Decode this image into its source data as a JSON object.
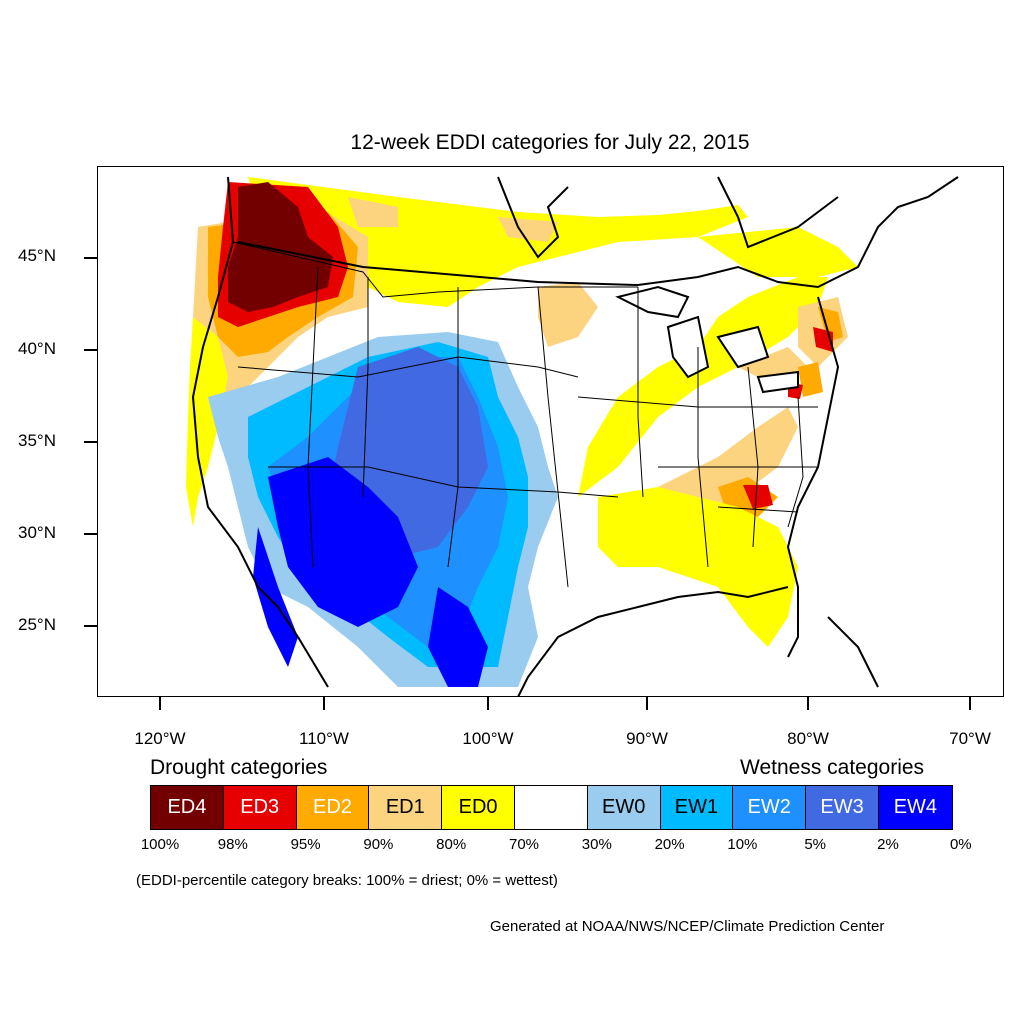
{
  "title": "12-week EDDI categories for July 22, 2015",
  "map": {
    "lat_labels": [
      "45°N",
      "40°N",
      "35°N",
      "30°N",
      "25°N"
    ],
    "lon_labels": [
      "120°W",
      "110°W",
      "100°W",
      "90°W",
      "80°W",
      "70°W"
    ],
    "colors": {
      "ED4": "#730000",
      "ED3": "#e60000",
      "ED2": "#ffaa00",
      "ED1": "#fcd37f",
      "ED0": "#ffff00",
      "none": "#ffffff",
      "EW0": "#99ccee",
      "EW1": "#00bbff",
      "EW2": "#1e90ff",
      "EW3": "#4169e1",
      "EW4": "#0000ff"
    }
  },
  "legend": {
    "drought_heading": "Drought categories",
    "wetness_heading": "Wetness categories",
    "categories": [
      {
        "label": "ED4",
        "color": "#730000",
        "text_color": "#ffffff"
      },
      {
        "label": "ED3",
        "color": "#e60000",
        "text_color": "#ffffff"
      },
      {
        "label": "ED2",
        "color": "#ffaa00",
        "text_color": "#ffffff"
      },
      {
        "label": "ED1",
        "color": "#fcd37f",
        "text_color": "#000000"
      },
      {
        "label": "ED0",
        "color": "#ffff00",
        "text_color": "#000000"
      },
      {
        "label": "",
        "color": "#ffffff",
        "text_color": "#000000"
      },
      {
        "label": "EW0",
        "color": "#99ccee",
        "text_color": "#000000"
      },
      {
        "label": "EW1",
        "color": "#00bbff",
        "text_color": "#000000"
      },
      {
        "label": "EW2",
        "color": "#1e90ff",
        "text_color": "#ffffff"
      },
      {
        "label": "EW3",
        "color": "#4169e1",
        "text_color": "#ffffff"
      },
      {
        "label": "EW4",
        "color": "#0000ff",
        "text_color": "#ffffff"
      }
    ],
    "breaks": [
      "100%",
      "98%",
      "95%",
      "90%",
      "80%",
      "70%",
      "30%",
      "20%",
      "10%",
      "5%",
      "2%",
      "0%"
    ],
    "note": "(EDDI-percentile category breaks: 100% = driest; 0% = wettest)"
  },
  "credit": "Generated at NOAA/NWS/NCEP/Climate Prediction Center"
}
